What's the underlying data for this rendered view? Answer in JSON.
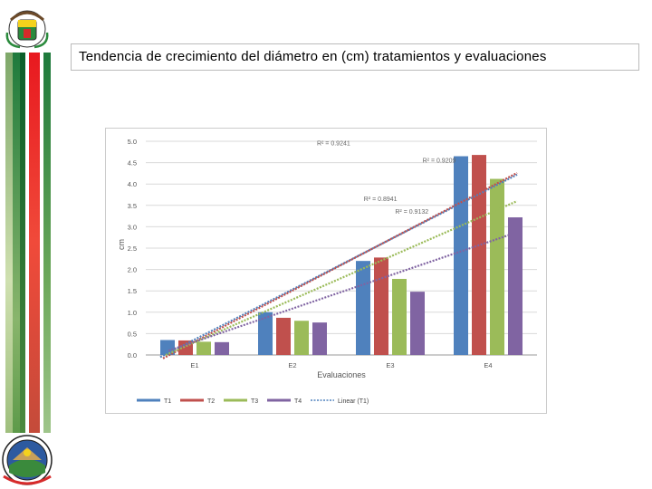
{
  "slide": {
    "title": "Tendencia de crecimiento del diámetro en (cm) tratamientos y evaluaciones"
  },
  "colors": {
    "T1": "#4f81bd",
    "T2": "#c0504d",
    "T3": "#9bbb59",
    "T4": "#8064a2",
    "stripe_green": "#1e7a3c",
    "stripe_red": "#e8191f"
  },
  "chart_data": {
    "type": "bar",
    "title": "",
    "xlabel": "Evaluaciones",
    "ylabel": "cm",
    "ylim": [
      0,
      5
    ],
    "yticks": [
      "5.0",
      "4.5",
      "4.0",
      "3.5",
      "3.0",
      "2.5",
      "2.0",
      "1.5",
      "1.0",
      "0.5",
      "0.0"
    ],
    "categories": [
      "E1",
      "E2",
      "E3",
      "E4"
    ],
    "series": [
      {
        "name": "T1",
        "values": [
          0.35,
          1.0,
          2.2,
          4.65
        ]
      },
      {
        "name": "T2",
        "values": [
          0.34,
          0.87,
          2.28,
          4.68
        ]
      },
      {
        "name": "T3",
        "values": [
          0.31,
          0.8,
          1.78,
          4.12
        ]
      },
      {
        "name": "T4",
        "values": [
          0.3,
          0.76,
          1.48,
          3.22
        ]
      }
    ],
    "trendlines": [
      {
        "series": "T1",
        "r2_label": "R² = 0.9241",
        "values": [
          -0.05,
          1.37,
          2.8,
          4.22
        ]
      },
      {
        "series": "T2",
        "r2_label": "R² = 0.9209",
        "values": [
          -0.08,
          1.36,
          2.82,
          4.26
        ]
      },
      {
        "series": "T3",
        "r2_label": "R² = 0.8941",
        "values": [
          0.0,
          1.2,
          2.4,
          3.6
        ]
      },
      {
        "series": "T4",
        "r2_label": "R² = 0.9132",
        "values": [
          0.1,
          1.02,
          1.95,
          2.87
        ]
      }
    ],
    "legend": {
      "position": "bottom",
      "entries": [
        "T1",
        "T2",
        "T3",
        "T4",
        "Linear (T1)"
      ]
    }
  }
}
